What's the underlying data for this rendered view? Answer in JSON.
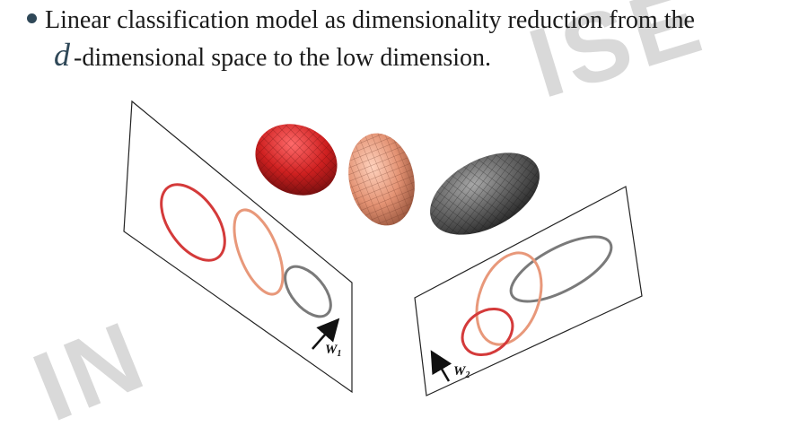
{
  "slide": {
    "bullet_line1": "Linear classification model as  dimensionality reduction from the",
    "bullet_var": "d",
    "bullet_line2": "-dimensional space to the low dimension.",
    "watermark_top": "ISE",
    "watermark_bottom": "IN"
  },
  "figure": {
    "projection_1_label": "W",
    "projection_1_sub": "1",
    "projection_2_label": "W",
    "projection_2_sub": "2",
    "colors": {
      "class_red": "#d43a3a",
      "class_salmon": "#e8987a",
      "class_gray": "#7a7a7a",
      "plane_border": "#222222"
    }
  }
}
